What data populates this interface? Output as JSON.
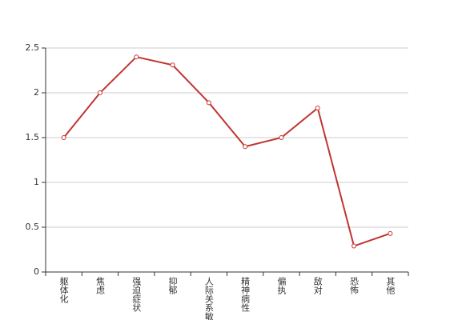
{
  "chart_data": {
    "type": "line",
    "categories": [
      "躯体化",
      "焦虑",
      "强迫症状",
      "抑郁",
      "人际关系敏感",
      "精神病性",
      "偏执",
      "敌对",
      "恐怖",
      "其他"
    ],
    "series": [
      {
        "color": "#c03532",
        "values": [
          1.5,
          2.0,
          2.4,
          2.31,
          1.89,
          1.4,
          1.5,
          1.83,
          0.29,
          0.43
        ]
      }
    ],
    "ylim": [
      0,
      2.5
    ],
    "yticks": [
      0,
      0.5,
      1,
      1.5,
      2,
      2.5
    ],
    "grid": true
  }
}
